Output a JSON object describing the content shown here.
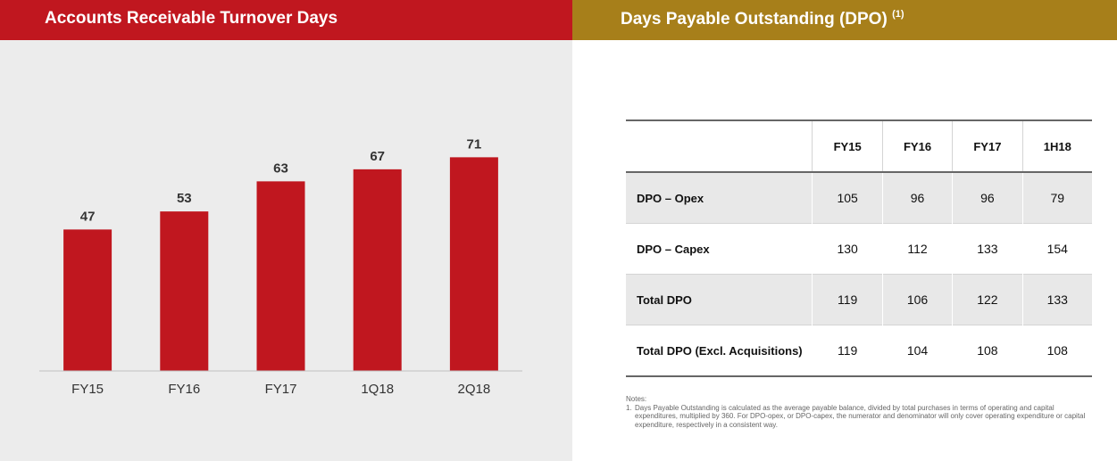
{
  "left_panel": {
    "title": "Accounts Receivable Turnover Days"
  },
  "right_panel": {
    "title": "Days Payable Outstanding (DPO)",
    "title_superscript": "(1)"
  },
  "chart_data": {
    "type": "bar",
    "title": "Accounts Receivable Turnover Days",
    "categories": [
      "FY15",
      "FY16",
      "FY17",
      "1Q18",
      "2Q18"
    ],
    "values": [
      47,
      53,
      63,
      67,
      71
    ],
    "ylim": [
      0,
      80
    ],
    "grid": false,
    "bar_color": "#c0171f"
  },
  "table": {
    "columns": [
      "FY15",
      "FY16",
      "FY17",
      "1H18"
    ],
    "rows": [
      {
        "label": "DPO – Opex",
        "values": [
          "105",
          "96",
          "96",
          "79"
        ]
      },
      {
        "label": "DPO – Capex",
        "values": [
          "130",
          "112",
          "133",
          "154"
        ]
      },
      {
        "label": "Total DPO",
        "values": [
          "119",
          "106",
          "122",
          "133"
        ]
      },
      {
        "label": "Total DPO (Excl. Acquisitions)",
        "values": [
          "119",
          "104",
          "108",
          "108"
        ]
      }
    ]
  },
  "notes": {
    "heading": "Notes:",
    "number": "1.",
    "text": "Days Payable Outstanding is calculated as the average payable balance, divided by total purchases in terms of operating and capital expenditures, multiplied by 360. For DPO-opex, or DPO-capex, the numerator and denominator will only cover operating expenditure or capital expenditure, respectively in a consistent way."
  },
  "colors": {
    "red": "#c0171f",
    "gold": "#a77f1a",
    "panel_bg": "#ececec"
  }
}
